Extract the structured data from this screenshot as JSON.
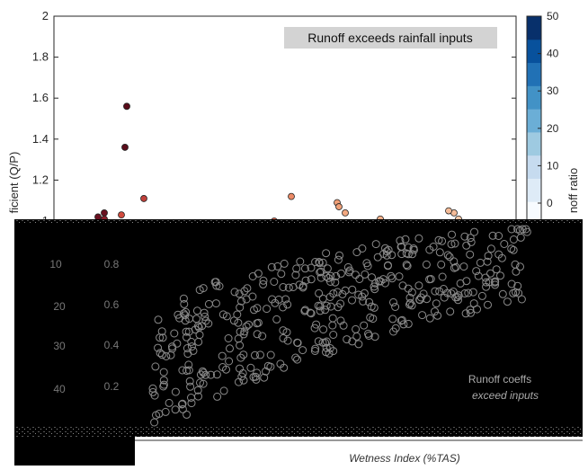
{
  "chart_data": {
    "type": "scatter",
    "ylabel": "ficient (Q/P)",
    "colorbar_label": "noff ratio",
    "annotation": "Runoff exceeds rainfall inputs",
    "ylim": [
      1.0,
      2.0
    ],
    "y_ticks": [
      "2",
      "1.8",
      "1.6",
      "1.4",
      "1.2",
      "1"
    ],
    "colorbar_ticks": [
      "50",
      "40",
      "30",
      "20",
      "10",
      "0"
    ],
    "colorbar_range": [
      0,
      50
    ],
    "colorbar_colors": [
      "#f7fbff",
      "#deebf7",
      "#c6dbef",
      "#9ecae1",
      "#6baed6",
      "#4292c6",
      "#2171b5",
      "#08519c",
      "#08306b"
    ],
    "points": [
      {
        "y": 1.56,
        "color": "#5a0c1a"
      },
      {
        "y": 1.36,
        "color": "#5a0c1a"
      },
      {
        "y": 1.11,
        "color": "#c0403a"
      },
      {
        "y": 1.04,
        "color": "#6a1020"
      },
      {
        "y": 1.02,
        "color": "#6a1020"
      },
      {
        "y": 1.01,
        "color": "#8a1c2a"
      },
      {
        "y": 1.03,
        "color": "#d24b3e"
      },
      {
        "y": 1.12,
        "color": "#ec8a66"
      },
      {
        "y": 1.0,
        "color": "#e86a50"
      },
      {
        "y": 1.09,
        "color": "#f0a078"
      },
      {
        "y": 1.07,
        "color": "#f0a078"
      },
      {
        "y": 1.04,
        "color": "#f2a880"
      },
      {
        "y": 1.01,
        "color": "#f4b08a"
      },
      {
        "y": 1.04,
        "color": "#f6bc98"
      },
      {
        "y": 1.05,
        "color": "#f6bc98"
      },
      {
        "y": 1.01,
        "color": "#f8c8a8"
      }
    ],
    "lower_left_ticks": [
      "10",
      "20",
      "30",
      "40"
    ],
    "lower_mid_ticks": [
      "0.8",
      "0.6",
      "0.4",
      "0.2"
    ],
    "lower_xlabel": "Wetness Index (%TAS)",
    "lower_annotation_line1": "Runoff coeffs",
    "lower_annotation_line2": "exceed inputs"
  }
}
